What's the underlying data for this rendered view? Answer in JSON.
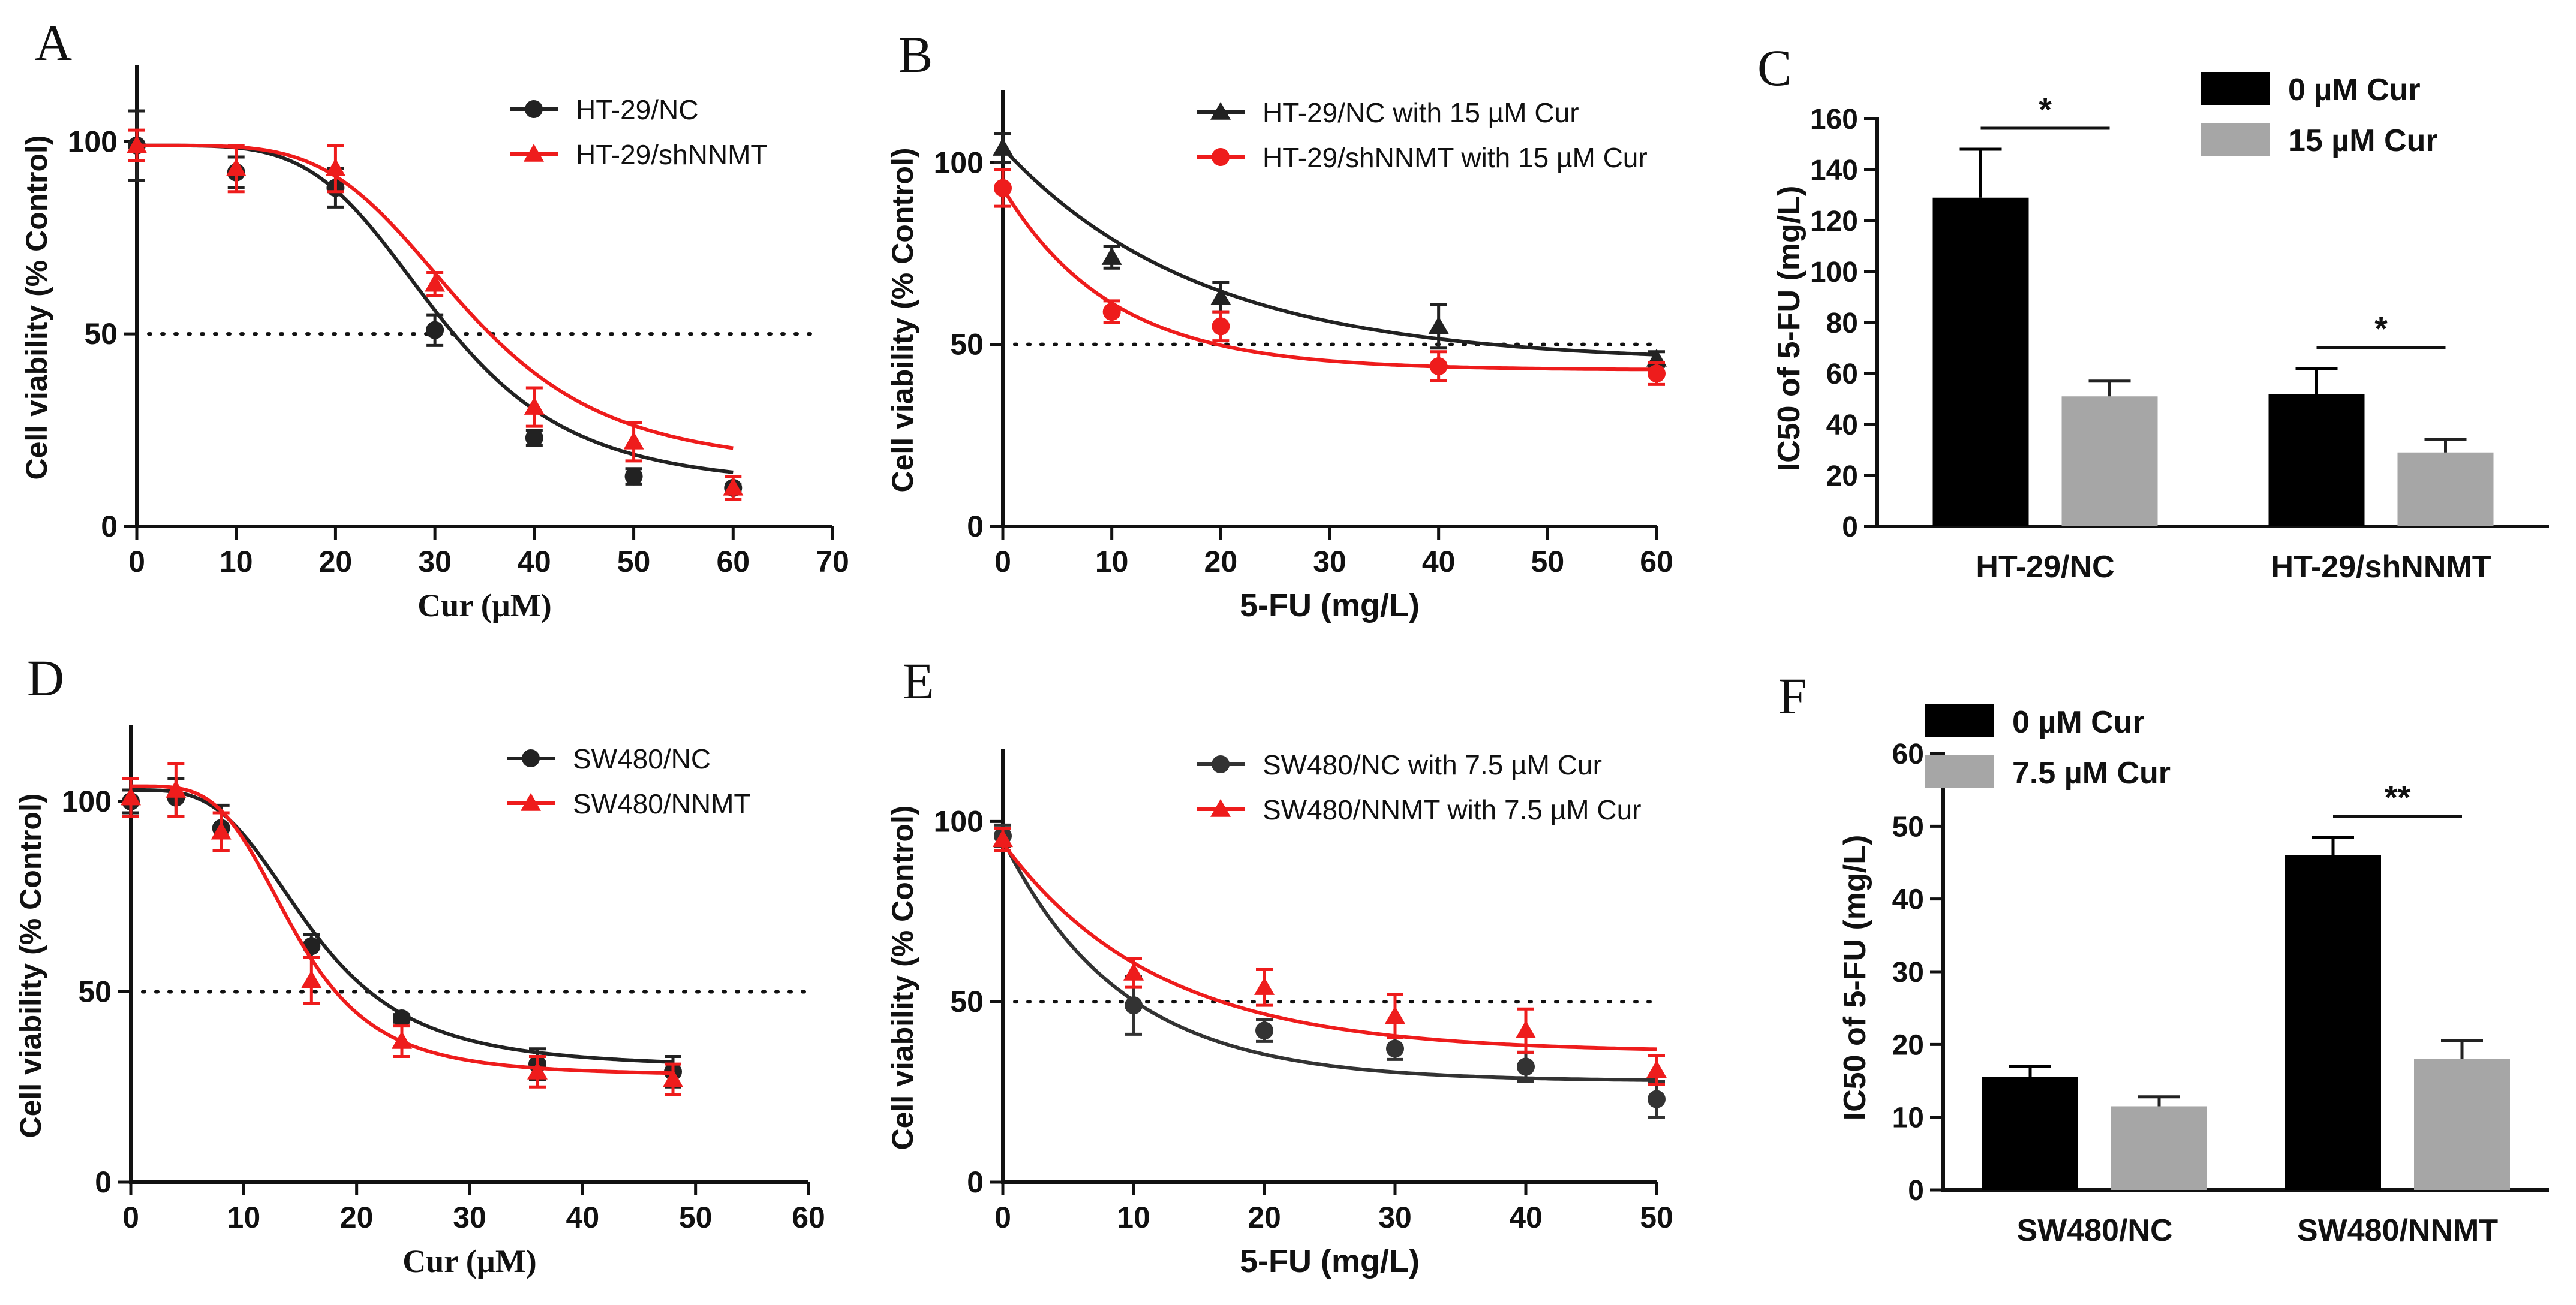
{
  "chart_data": [
    {
      "id": "A",
      "type": "line",
      "panel_label": "A",
      "xlabel": "Cur (µM)",
      "ylabel": "Cell viability (% Control)",
      "xlim": [
        0,
        70
      ],
      "ylim": [
        0,
        120
      ],
      "xticks": [
        0,
        10,
        20,
        30,
        40,
        50,
        60,
        70
      ],
      "yticks": [
        0,
        50,
        100
      ],
      "reference_line_y": 50,
      "legend_position": "top-right",
      "series": [
        {
          "name": "HT-29/NC",
          "color": "#222222",
          "marker": "circle",
          "x": [
            0,
            10,
            20,
            30,
            40,
            50,
            60
          ],
          "y": [
            99,
            92,
            88,
            51,
            23,
            13,
            10
          ],
          "err": [
            9,
            4,
            5,
            4,
            2,
            2,
            1
          ],
          "fit": {
            "top": 99,
            "bottom": 10,
            "ec50": 30.5,
            "hill": 4.5
          }
        },
        {
          "name": "HT-29/shNNMT",
          "color": "#ee1c1c",
          "marker": "triangle",
          "x": [
            0,
            10,
            20,
            30,
            40,
            50,
            60
          ],
          "y": [
            99,
            93,
            93,
            63,
            31,
            22,
            10
          ],
          "err": [
            4,
            6,
            6,
            3,
            5,
            5,
            3
          ],
          "fit": {
            "top": 99,
            "bottom": 15,
            "ec50": 33,
            "hill": 4.5
          }
        }
      ]
    },
    {
      "id": "B",
      "type": "line",
      "panel_label": "B",
      "xlabel": "5-FU (mg/L)",
      "ylabel": "Cell viability (% Control)",
      "xlim": [
        0,
        60
      ],
      "ylim": [
        0,
        120
      ],
      "xticks": [
        0,
        10,
        20,
        30,
        40,
        50,
        60
      ],
      "yticks": [
        0,
        50,
        100
      ],
      "reference_line_y": 50,
      "legend_position": "top-right",
      "series": [
        {
          "name": "HT-29/NC with 15 µM Cur",
          "color": "#222222",
          "marker": "triangle",
          "x": [
            0,
            10,
            20,
            40,
            60
          ],
          "y": [
            104,
            74,
            63,
            55,
            46
          ],
          "err": [
            4,
            3,
            4,
            6,
            2
          ],
          "fit": {
            "plateau": 45,
            "y0": 104,
            "k": 0.055
          }
        },
        {
          "name": "HT-29/shNNMT with 15 µM Cur",
          "color": "#ee1c1c",
          "marker": "circle",
          "x": [
            0,
            10,
            20,
            40,
            60
          ],
          "y": [
            93,
            59,
            55,
            44,
            42
          ],
          "err": [
            5,
            3,
            4,
            4,
            3
          ],
          "fit": {
            "plateau": 43,
            "y0": 93,
            "k": 0.1
          }
        }
      ]
    },
    {
      "id": "C",
      "type": "bar",
      "panel_label": "C",
      "ylabel": "IC50 of 5-FU (mg/L)",
      "ylim": [
        0,
        160
      ],
      "yticks": [
        0,
        20,
        40,
        60,
        80,
        100,
        120,
        140,
        160
      ],
      "categories": [
        "HT-29/NC",
        "HT-29/shNNMT"
      ],
      "legend_position": "top-right",
      "series": [
        {
          "name": "0 µM Cur",
          "color": "#000000",
          "values": [
            129,
            52
          ],
          "err": [
            19,
            10
          ]
        },
        {
          "name": "15 µM Cur",
          "color": "#a6a6a6",
          "values": [
            51,
            29
          ],
          "err": [
            6,
            5
          ]
        }
      ],
      "significance": [
        "*",
        "*"
      ]
    },
    {
      "id": "D",
      "type": "line",
      "panel_label": "D",
      "xlabel": "Cur (µM)",
      "ylabel": "Cell viability (% Control)",
      "xlim": [
        0,
        60
      ],
      "ylim": [
        0,
        120
      ],
      "xticks": [
        0,
        10,
        20,
        30,
        40,
        50,
        60
      ],
      "yticks": [
        0,
        50,
        100
      ],
      "reference_line_y": 50,
      "legend_position": "top-right",
      "series": [
        {
          "name": "SW480/NC",
          "color": "#222222",
          "marker": "circle",
          "x": [
            0,
            4,
            8,
            16,
            24,
            36,
            48
          ],
          "y": [
            100,
            101,
            93,
            62,
            43,
            31,
            29
          ],
          "err": [
            3,
            5,
            6,
            3,
            1,
            4,
            4
          ],
          "fit": {
            "top": 103,
            "bottom": 30,
            "ec50": 16,
            "hill": 3.5
          }
        },
        {
          "name": "SW480/NNMT",
          "color": "#ee1c1c",
          "marker": "triangle",
          "x": [
            0,
            4,
            8,
            16,
            24,
            36,
            48
          ],
          "y": [
            101,
            103,
            92,
            53,
            37,
            29,
            27
          ],
          "err": [
            5,
            7,
            5,
            6,
            4,
            4,
            4
          ],
          "fit": {
            "top": 104,
            "bottom": 28,
            "ec50": 14.5,
            "hill": 4
          }
        }
      ]
    },
    {
      "id": "E",
      "type": "line",
      "panel_label": "E",
      "xlabel": "5-FU (mg/L)",
      "ylabel": "Cell viability (% Control)",
      "xlim": [
        0,
        50
      ],
      "ylim": [
        0,
        120
      ],
      "xticks": [
        0,
        10,
        20,
        30,
        40,
        50
      ],
      "yticks": [
        0,
        50,
        100
      ],
      "reference_line_y": 50,
      "legend_position": "top-right",
      "series": [
        {
          "name": "SW480/NC with 7.5 µM Cur",
          "color": "#333333",
          "marker": "circle",
          "x": [
            0,
            10,
            20,
            30,
            40,
            50
          ],
          "y": [
            96,
            49,
            42,
            37,
            32,
            23
          ],
          "err": [
            3,
            8,
            3,
            3,
            4,
            5
          ],
          "fit": {
            "plateau": 28,
            "y0": 95,
            "k": 0.11
          }
        },
        {
          "name": "SW480/NNMT with 7.5 µM Cur",
          "color": "#ee1c1c",
          "marker": "triangle",
          "x": [
            0,
            10,
            20,
            30,
            40,
            50
          ],
          "y": [
            95,
            58,
            54,
            46,
            42,
            31
          ],
          "err": [
            3,
            4,
            5,
            6,
            6,
            4
          ],
          "fit": {
            "plateau": 36,
            "y0": 94,
            "k": 0.085
          }
        }
      ]
    },
    {
      "id": "F",
      "type": "bar",
      "panel_label": "F",
      "ylabel": "IC50 of 5-FU (mg/L)",
      "ylim": [
        0,
        60
      ],
      "yticks": [
        0,
        10,
        20,
        30,
        40,
        50,
        60
      ],
      "categories": [
        "SW480/NC",
        "SW480/NNMT"
      ],
      "legend_position": "top-left",
      "series": [
        {
          "name": "0 µM Cur",
          "color": "#000000",
          "values": [
            15.5,
            46
          ],
          "err": [
            1.5,
            2.5
          ]
        },
        {
          "name": "7.5 µM Cur",
          "color": "#a6a6a6",
          "values": [
            11.5,
            18
          ],
          "err": [
            1.3,
            2.5
          ]
        }
      ],
      "significance": [
        null,
        "**"
      ]
    }
  ]
}
